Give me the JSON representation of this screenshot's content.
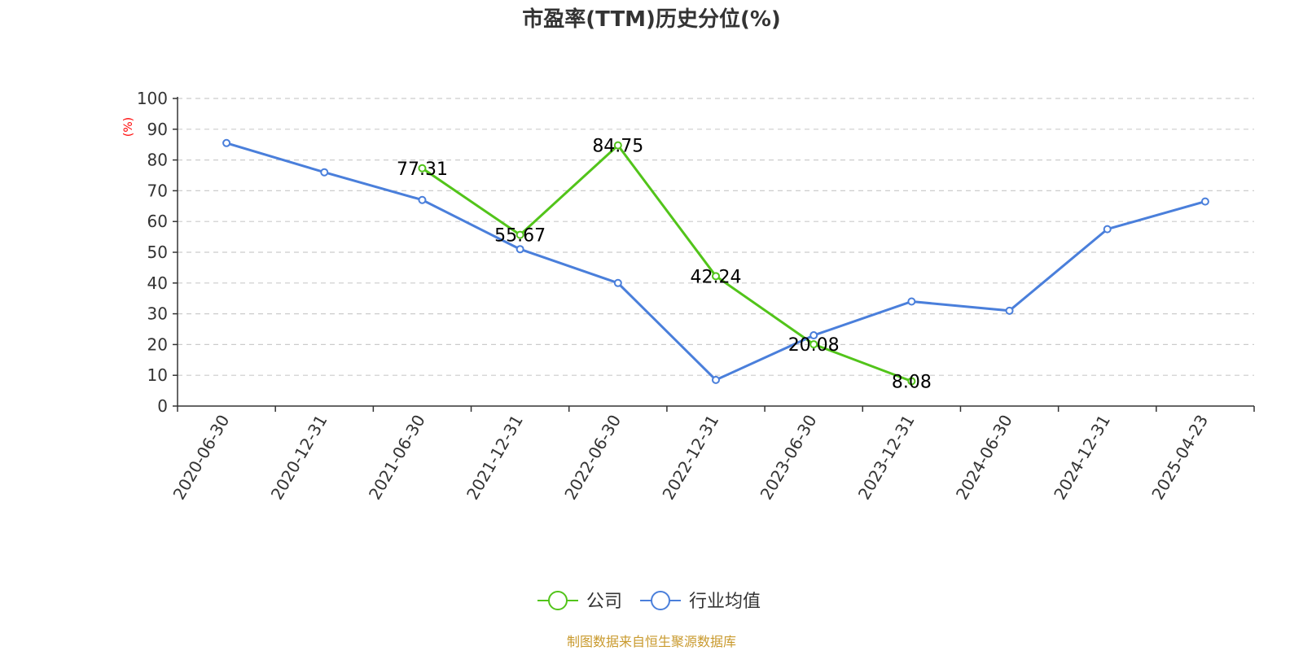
{
  "chart_data": {
    "type": "line",
    "title": "市盈率(TTM)历史分位(%)",
    "ylabel": "(%)",
    "xlabel": "",
    "ylim": [
      0,
      100
    ],
    "yticks": [
      0,
      10,
      20,
      30,
      40,
      50,
      60,
      70,
      80,
      90,
      100
    ],
    "grid": true,
    "legend_position": "bottom-center",
    "categories": [
      "2020-06-30",
      "2020-12-31",
      "2021-06-30",
      "2021-12-31",
      "2022-06-30",
      "2022-12-31",
      "2023-06-30",
      "2023-12-31",
      "2024-06-30",
      "2024-12-31",
      "2025-04-23"
    ],
    "series": [
      {
        "name": "公司",
        "color": "#52c41a",
        "show_labels": true,
        "values": [
          null,
          null,
          77.31,
          55.67,
          84.75,
          42.24,
          20.08,
          8.08,
          null,
          null,
          null
        ]
      },
      {
        "name": "行业均值",
        "color": "#4a7fdb",
        "show_labels": false,
        "values": [
          85.5,
          76,
          67,
          51,
          40,
          8.5,
          23,
          34,
          31,
          57.5,
          66.5
        ]
      }
    ],
    "source": "制图数据来自恒生聚源数据库"
  }
}
